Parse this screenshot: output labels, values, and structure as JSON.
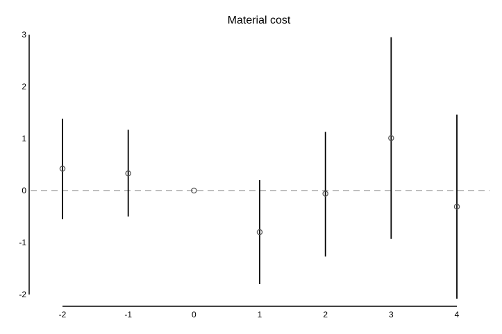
{
  "chart_data": {
    "type": "scatter",
    "title": "Material cost",
    "xlabel": "",
    "ylabel": "",
    "x_ticks": [
      -2,
      -1,
      0,
      1,
      2,
      3,
      4
    ],
    "y_ticks": [
      -2,
      -1,
      0,
      1,
      2,
      3
    ],
    "ylim": [
      -2,
      3
    ],
    "reference_line": {
      "y": 0,
      "style": "dashed",
      "color": "#999999"
    },
    "grid": false,
    "series": [
      {
        "points": [
          {
            "x": -2,
            "y": 0.42,
            "lower": -0.55,
            "upper": 1.38
          },
          {
            "x": -1,
            "y": 0.33,
            "lower": -0.5,
            "upper": 1.17
          },
          {
            "x": 0,
            "y": 0.0,
            "lower": 0.0,
            "upper": 0.0
          },
          {
            "x": 1,
            "y": -0.8,
            "lower": -1.8,
            "upper": 0.2
          },
          {
            "x": 2,
            "y": -0.06,
            "lower": -1.27,
            "upper": 1.13
          },
          {
            "x": 3,
            "y": 1.01,
            "lower": -0.93,
            "upper": 2.95
          },
          {
            "x": 4,
            "y": -0.31,
            "lower": -2.08,
            "upper": 1.46
          }
        ]
      }
    ]
  }
}
